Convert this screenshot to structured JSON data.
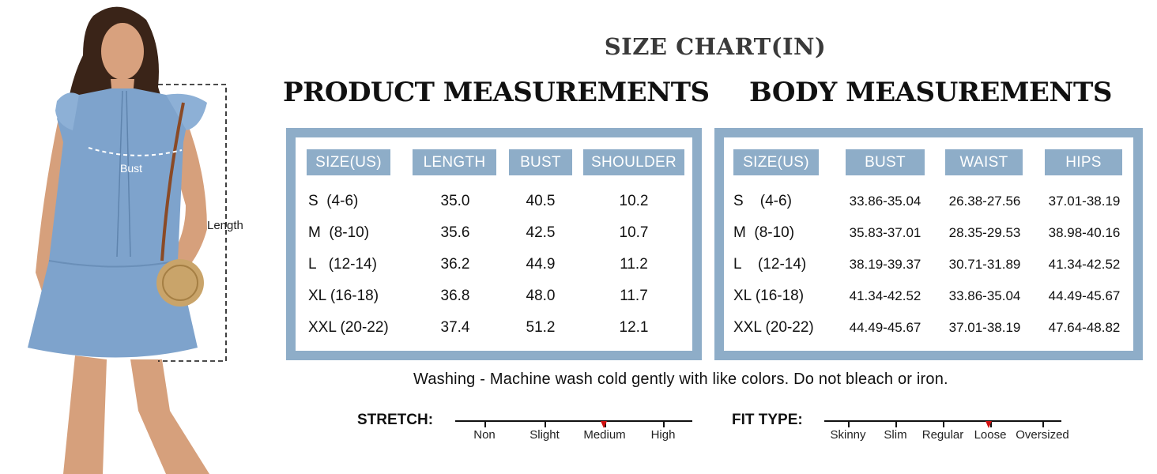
{
  "title": "SIZE CHART(IN)",
  "model": {
    "bust_label": "Bust",
    "length_label": "Length",
    "dress_color": "#7ea3cc"
  },
  "product": {
    "title": "PRODUCT MEASUREMENTS",
    "headers": [
      "SIZE(US)",
      "LENGTH",
      "BUST",
      "SHOULDER"
    ],
    "rows": [
      [
        "S  (4-6)",
        "35.0",
        "40.5",
        "10.2"
      ],
      [
        "M  (8-10)",
        "35.6",
        "42.5",
        "10.7"
      ],
      [
        "L   (12-14)",
        "36.2",
        "44.9",
        "11.2"
      ],
      [
        "XL (16-18)",
        "36.8",
        "48.0",
        "11.7"
      ],
      [
        "XXL (20-22)",
        "37.4",
        "51.2",
        "12.1"
      ]
    ]
  },
  "body": {
    "title": "BODY MEASUREMENTS",
    "headers": [
      "SIZE(US)",
      "BUST",
      "WAIST",
      "HIPS"
    ],
    "rows": [
      [
        "S    (4-6)",
        "33.86-35.04",
        "26.38-27.56",
        "37.01-38.19"
      ],
      [
        "M  (8-10)",
        "35.83-37.01",
        "28.35-29.53",
        "38.98-40.16"
      ],
      [
        "L    (12-14)",
        "38.19-39.37",
        "30.71-31.89",
        "41.34-42.52"
      ],
      [
        "XL (16-18)",
        "41.34-42.52",
        "33.86-35.04",
        "44.49-45.67"
      ],
      [
        "XXL (20-22)",
        "44.49-45.67",
        "37.01-38.19",
        "47.64-48.82"
      ]
    ]
  },
  "washing": "Washing - Machine wash cold gently with like colors. Do not bleach or iron.",
  "stretch": {
    "label": "STRETCH:",
    "options": [
      "Non",
      "Slight",
      "Medium",
      "High"
    ],
    "selected": "Medium"
  },
  "fit": {
    "label": "FIT TYPE:",
    "options": [
      "Skinny",
      "Slim",
      "Regular",
      "Loose",
      "Oversized"
    ],
    "selected": "Loose"
  },
  "colors": {
    "accent": "#8eadc8",
    "marker": "#d01010"
  }
}
